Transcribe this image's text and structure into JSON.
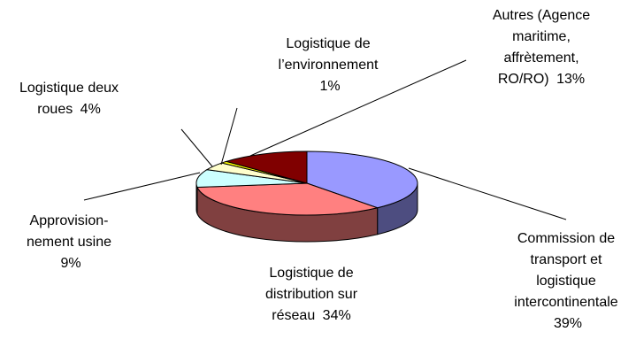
{
  "chart_data": {
    "type": "pie",
    "categories": [
      "Commission de transport et logistique intercontinentale",
      "Logistique de distribution sur réseau",
      "Approvision-nement usine",
      "Logistique deux roues",
      "Logistique de l’environnement",
      "Autres (Agence maritime, affrètement, RO/RO)"
    ],
    "values": [
      39,
      34,
      9,
      4,
      1,
      13
    ],
    "value_labels": [
      "39%",
      "34%",
      "9%",
      "4%",
      "1%",
      "13%"
    ],
    "colors": [
      "#9999ff",
      "#ff8080",
      "#ccffff",
      "#ffffcc",
      "#ffff00",
      "#800000"
    ]
  }
}
